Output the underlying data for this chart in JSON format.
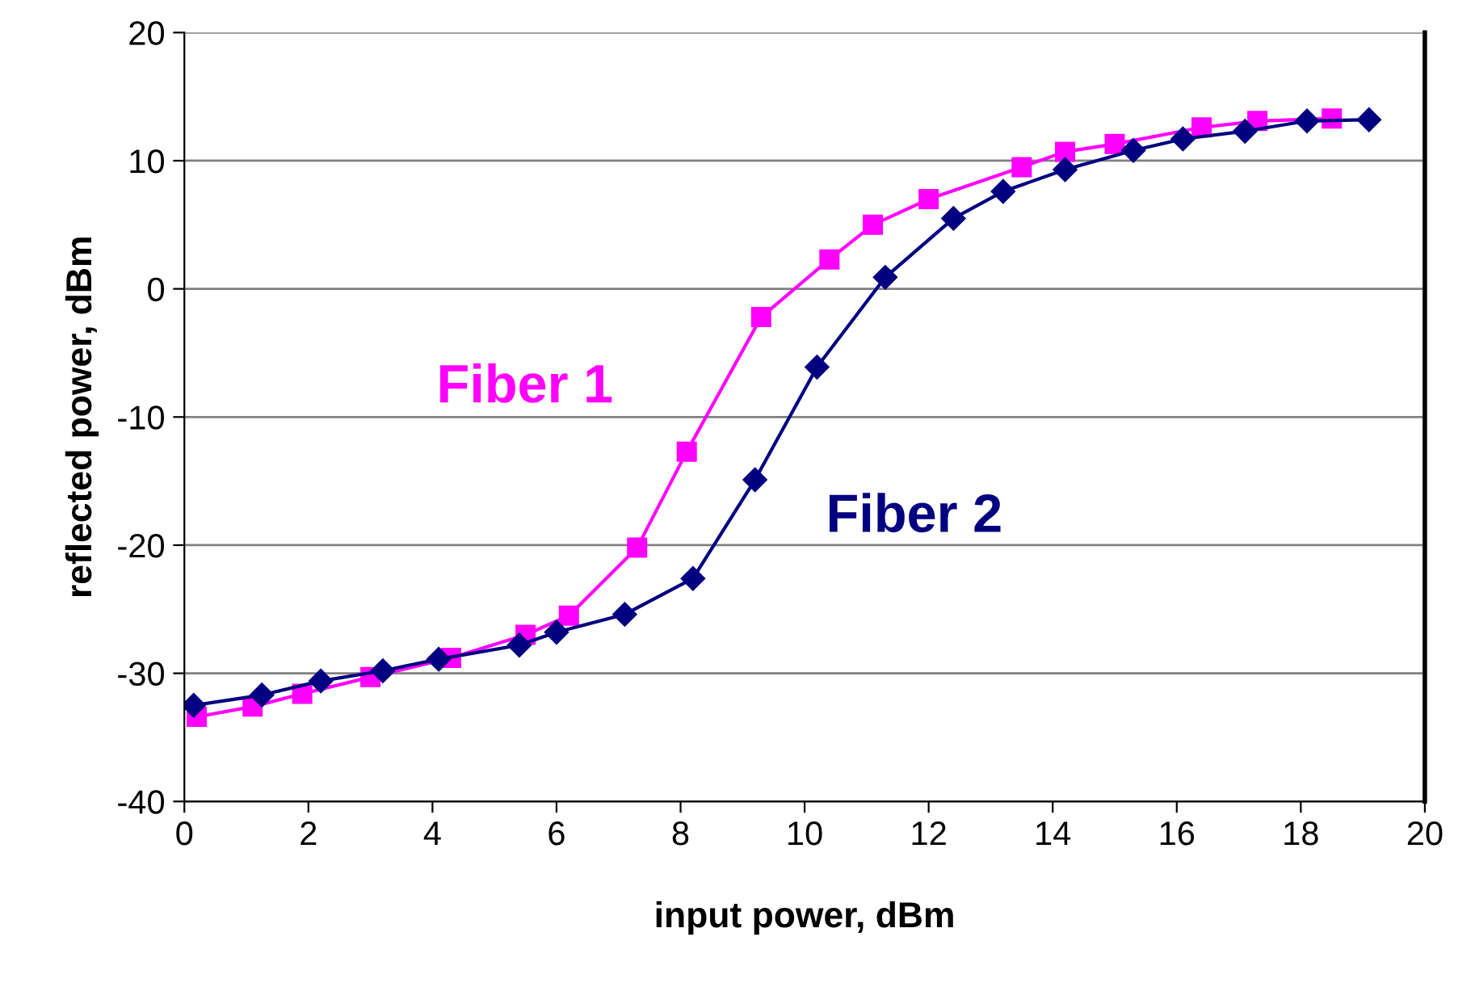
{
  "chart_data": {
    "type": "line",
    "xlabel": "input power, dBm",
    "ylabel": "reflected power, dBm",
    "xlim": [
      0,
      20
    ],
    "xticks": [
      0,
      2,
      4,
      6,
      8,
      10,
      12,
      14,
      16,
      18,
      20
    ],
    "ylim": [
      -40,
      20
    ],
    "yticks": [
      -40,
      -30,
      -20,
      -10,
      0,
      10,
      20
    ],
    "grid": "y",
    "series": [
      {
        "name": "Fiber 1",
        "color": "#ff00ff",
        "marker": "square",
        "x": [
          0.2,
          1.1,
          1.9,
          3.0,
          4.3,
          5.5,
          6.2,
          7.3,
          8.1,
          9.3,
          10.4,
          11.1,
          12.0,
          13.5,
          14.2,
          15.0,
          16.4,
          17.3,
          18.5
        ],
        "values": [
          -33.4,
          -32.6,
          -31.6,
          -30.3,
          -28.8,
          -27.0,
          -25.5,
          -20.2,
          -12.7,
          -2.2,
          2.3,
          5.0,
          7.0,
          9.5,
          10.7,
          11.3,
          12.6,
          13.1,
          13.3
        ]
      },
      {
        "name": "Fiber 2",
        "color": "#000080",
        "marker": "diamond",
        "x": [
          0.15,
          1.25,
          2.2,
          3.2,
          4.1,
          5.4,
          6.0,
          7.1,
          8.2,
          9.2,
          10.2,
          11.3,
          12.4,
          13.2,
          14.2,
          15.3,
          16.1,
          17.1,
          18.1,
          19.1
        ],
        "values": [
          -32.5,
          -31.7,
          -30.6,
          -29.8,
          -28.9,
          -27.8,
          -26.8,
          -25.4,
          -22.6,
          -14.9,
          -6.1,
          0.9,
          5.5,
          7.6,
          9.3,
          10.8,
          11.7,
          12.3,
          13.1,
          13.2
        ]
      }
    ]
  }
}
